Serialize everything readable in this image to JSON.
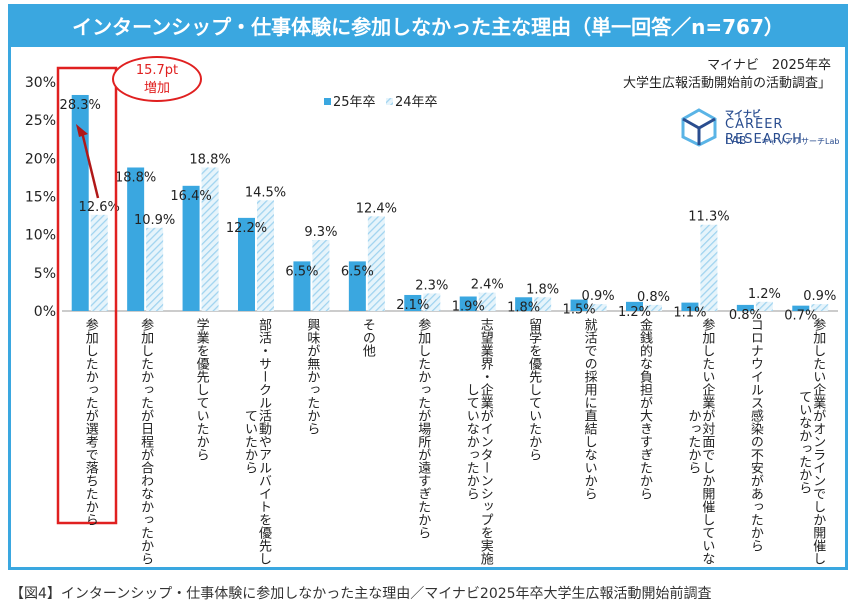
{
  "caption": "【図4】インターンシップ・仕事体験に参加しなかった主な理由／マイナビ2025年卒大学生広報活動開始前調査",
  "source": {
    "line1": "マイナビ　2025年卒",
    "line2": "大学生広報活動開始前の活動調査」"
  },
  "logo": {
    "brand": "マイナビ",
    "main": "CAREER RESEARCH",
    "sub": "LAB",
    "sub2": "キャリアリサーチLab"
  },
  "callout": {
    "line1": "15.7pt",
    "line2": "増加"
  },
  "colors": {
    "series25": "#3aa7e0",
    "series24": "#bfe3f5",
    "frame": "#3aa7e0",
    "highlight": "#e02020"
  },
  "chart_data": {
    "type": "bar",
    "title": "インターンシップ・仕事体験に参加しなかった主な理由（単一回答／n=767）",
    "ylim": [
      0,
      30
    ],
    "yticks": [
      "0%",
      "5%",
      "10%",
      "15%",
      "20%",
      "25%",
      "30%"
    ],
    "legend_position": "top",
    "categories": [
      [
        "参加したかったが選考で落ちたから"
      ],
      [
        "参加したかったが日程が合わなかったから"
      ],
      [
        "学業を優先していたから"
      ],
      [
        "部活・サークル活動やアルバイトを優先し",
        "ていたから"
      ],
      [
        "興味が無かったから"
      ],
      [
        "その他"
      ],
      [
        "参加したかったが場所が遠すぎたから"
      ],
      [
        "志望業界・企業がインターンシップを実施",
        "していなかったから"
      ],
      [
        "留学を優先していたから"
      ],
      [
        "就活での採用に直結しないから"
      ],
      [
        "金銭的な負担が大きすぎたから"
      ],
      [
        "参加したい企業が対面でしか開催していな",
        "かったから"
      ],
      [
        "コロナウイルス感染の不安があったから"
      ],
      [
        "参加したい企業がオンラインでしか開催し",
        "ていなかったから"
      ]
    ],
    "series": [
      {
        "name": "25年卒",
        "values": [
          28.3,
          18.8,
          16.4,
          12.2,
          6.5,
          6.5,
          2.1,
          1.9,
          1.8,
          1.5,
          1.2,
          1.1,
          0.8,
          0.7
        ],
        "labels": [
          "28.3%",
          "18.8%",
          "16.4%",
          "12.2%",
          "6.5%",
          "6.5%",
          "2.1%",
          "1.9%",
          "1.8%",
          "1.5%",
          "1.2%",
          "1.1%",
          "0.8%",
          "0.7%"
        ]
      },
      {
        "name": "24年卒",
        "values": [
          12.6,
          10.9,
          18.8,
          14.5,
          9.3,
          12.4,
          2.3,
          2.4,
          1.8,
          0.9,
          0.8,
          11.3,
          1.2,
          0.9
        ],
        "labels": [
          "12.6%",
          "10.9%",
          "18.8%",
          "14.5%",
          "9.3%",
          "12.4%",
          "2.3%",
          "2.4%",
          "1.8%",
          "0.9%",
          "0.8%",
          "11.3%",
          "1.2%",
          "0.9%"
        ]
      }
    ]
  }
}
